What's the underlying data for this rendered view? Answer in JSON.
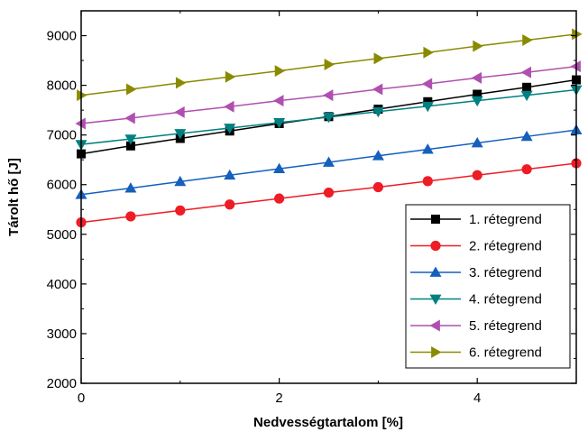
{
  "chart_data": {
    "type": "line",
    "title": "",
    "xlabel": "Nedvességtartalom [%]",
    "ylabel": "Tárolt hő [J]",
    "xlim": [
      0,
      5
    ],
    "ylim": [
      2000,
      9500
    ],
    "xticks": [
      0,
      2,
      4
    ],
    "yticks": [
      2000,
      3000,
      4000,
      5000,
      6000,
      7000,
      8000,
      9000
    ],
    "grid": false,
    "legend_position": "bottom-right",
    "x": [
      0,
      0.5,
      1,
      1.5,
      2,
      2.5,
      3,
      3.5,
      4,
      4.5,
      5
    ],
    "series": [
      {
        "name": "1. rétegrend",
        "color": "#000000",
        "marker": "square",
        "values": [
          6620,
          6780,
          6930,
          7080,
          7230,
          7370,
          7520,
          7670,
          7820,
          7960,
          8110
        ]
      },
      {
        "name": "2. rétegrend",
        "color": "#ee1c24",
        "marker": "circle",
        "values": [
          5240,
          5360,
          5480,
          5600,
          5720,
          5840,
          5950,
          6070,
          6190,
          6310,
          6430
        ]
      },
      {
        "name": "3. rétegrend",
        "color": "#1560bd",
        "marker": "triangle-up",
        "values": [
          5800,
          5930,
          6060,
          6190,
          6320,
          6450,
          6580,
          6710,
          6840,
          6970,
          7100
        ]
      },
      {
        "name": "4. rétegrend",
        "color": "#008080",
        "marker": "triangle-down",
        "values": [
          6810,
          6920,
          7030,
          7140,
          7250,
          7360,
          7470,
          7580,
          7690,
          7800,
          7910
        ]
      },
      {
        "name": "5. rétegrend",
        "color": "#b04fb0",
        "marker": "triangle-left",
        "values": [
          7230,
          7340,
          7460,
          7570,
          7690,
          7800,
          7920,
          8030,
          8150,
          8260,
          8380
        ]
      },
      {
        "name": "6. rétegrend",
        "color": "#8a8a00",
        "marker": "triangle-right",
        "values": [
          7800,
          7920,
          8050,
          8170,
          8290,
          8420,
          8540,
          8660,
          8790,
          8910,
          9030
        ]
      }
    ]
  }
}
